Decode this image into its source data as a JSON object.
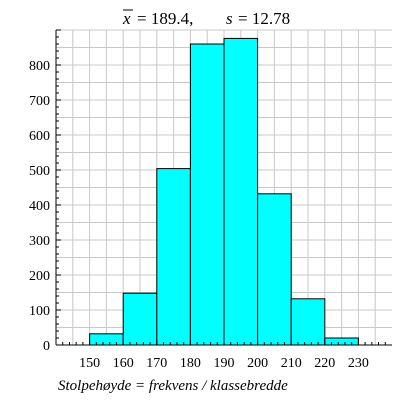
{
  "chart_data": {
    "type": "bar",
    "title_parts": {
      "mean_symbol": "x",
      "mean_value": "= 189.4,",
      "sd_symbol": "s",
      "sd_value": "= 12.78"
    },
    "xlabel": "Stolpehøyde = frekvens / klassebredde",
    "ylabel": "",
    "bins": [
      {
        "from": 150,
        "to": 160,
        "value": 32
      },
      {
        "from": 160,
        "to": 170,
        "value": 148
      },
      {
        "from": 170,
        "to": 180,
        "value": 504
      },
      {
        "from": 180,
        "to": 190,
        "value": 860
      },
      {
        "from": 190,
        "to": 200,
        "value": 876
      },
      {
        "from": 200,
        "to": 210,
        "value": 432
      },
      {
        "from": 210,
        "to": 220,
        "value": 132
      },
      {
        "from": 220,
        "to": 230,
        "value": 20
      }
    ],
    "xticks": [
      150,
      160,
      170,
      180,
      190,
      200,
      210,
      220,
      230
    ],
    "yticks": [
      0,
      100,
      200,
      300,
      400,
      500,
      600,
      700,
      800
    ],
    "xlim": [
      140,
      240
    ],
    "ylim": [
      0,
      900
    ],
    "grid": true,
    "bar_color": "#00ffff",
    "grid_color": "#c8c8c8"
  }
}
